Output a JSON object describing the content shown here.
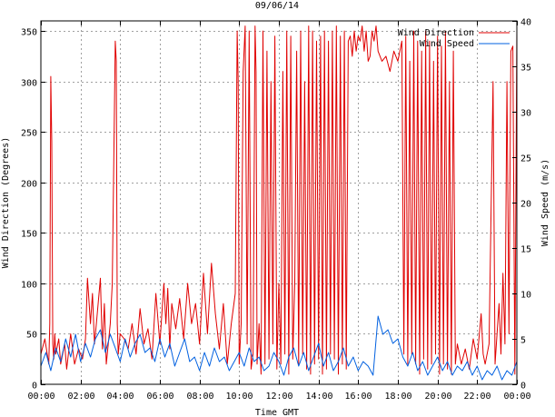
{
  "chart_data": {
    "type": "line",
    "title": "09/06/14",
    "xlabel": "Time GMT",
    "ylabel_left": "Wind Direction (Degrees)",
    "ylabel_right": "Wind Speed (m/s)",
    "xlim": [
      0,
      24
    ],
    "ylim_left": [
      0,
      360
    ],
    "ylim_right": [
      0,
      40
    ],
    "x_tick_values": [
      0,
      2,
      4,
      6,
      8,
      10,
      12,
      14,
      16,
      18,
      20,
      22,
      24
    ],
    "x_tick_labels": [
      "00:00",
      "02:00",
      "04:00",
      "06:00",
      "08:00",
      "10:00",
      "12:00",
      "14:00",
      "16:00",
      "18:00",
      "20:00",
      "22:00",
      "00:00"
    ],
    "y_left_tick_values": [
      0,
      50,
      100,
      150,
      200,
      250,
      300,
      350
    ],
    "y_left_tick_labels": [
      "0",
      "50",
      "100",
      "150",
      "200",
      "250",
      "300",
      "350"
    ],
    "y_right_tick_values": [
      0,
      5,
      10,
      15,
      20,
      25,
      30,
      35,
      40
    ],
    "y_right_tick_labels": [
      "0",
      "5",
      "10",
      "15",
      "20",
      "25",
      "30",
      "35",
      "40"
    ],
    "grid": true,
    "legend_position": "top-right",
    "series": [
      {
        "name": "Wind Direction",
        "axis": "left",
        "color": "#e00000",
        "x": [
          0.0,
          0.2,
          0.4,
          0.45,
          0.5,
          0.55,
          0.6,
          0.65,
          0.7,
          0.75,
          0.9,
          1.0,
          1.2,
          1.3,
          1.5,
          1.7,
          1.9,
          2.1,
          2.25,
          2.35,
          2.5,
          2.6,
          2.7,
          2.8,
          3.0,
          3.1,
          3.2,
          3.3,
          3.5,
          3.6,
          3.75,
          3.8,
          3.85,
          3.9,
          4.0,
          4.2,
          4.4,
          4.6,
          4.8,
          5.0,
          5.2,
          5.4,
          5.6,
          5.8,
          6.0,
          6.2,
          6.3,
          6.4,
          6.5,
          6.6,
          6.8,
          7.0,
          7.2,
          7.4,
          7.6,
          7.8,
          8.0,
          8.2,
          8.4,
          8.6,
          8.8,
          9.0,
          9.2,
          9.4,
          9.6,
          9.8,
          9.9,
          9.95,
          10.0,
          10.1,
          10.2,
          10.3,
          10.35,
          10.4,
          10.5,
          10.6,
          10.7,
          10.8,
          10.85,
          10.9,
          11.0,
          11.1,
          11.2,
          11.3,
          11.4,
          11.5,
          11.6,
          11.7,
          11.8,
          11.9,
          12.0,
          12.1,
          12.2,
          12.3,
          12.4,
          12.5,
          12.6,
          12.7,
          12.8,
          12.9,
          13.0,
          13.1,
          13.2,
          13.3,
          13.4,
          13.5,
          13.6,
          13.7,
          13.8,
          13.9,
          14.0,
          14.1,
          14.2,
          14.3,
          14.4,
          14.5,
          14.6,
          14.7,
          14.8,
          14.9,
          15.0,
          15.1,
          15.2,
          15.3,
          15.4,
          15.5,
          15.6,
          15.7,
          15.8,
          15.9,
          16.0,
          16.1,
          16.2,
          16.3,
          16.4,
          16.5,
          16.6,
          16.7,
          16.8,
          16.9,
          17.0,
          17.2,
          17.4,
          17.6,
          17.8,
          18.0,
          18.2,
          18.3,
          18.4,
          18.5,
          18.6,
          18.7,
          18.8,
          18.9,
          19.0,
          19.1,
          19.2,
          19.3,
          19.4,
          19.5,
          19.6,
          19.7,
          19.8,
          19.9,
          20.0,
          20.1,
          20.2,
          20.3,
          20.4,
          20.5,
          20.6,
          20.7,
          20.8,
          20.9,
          21.0,
          21.2,
          21.4,
          21.6,
          21.8,
          22.0,
          22.2,
          22.3,
          22.4,
          22.6,
          22.8,
          22.9,
          23.0,
          23.1,
          23.2,
          23.3,
          23.4,
          23.5,
          23.6,
          23.7,
          23.8,
          23.9,
          24.0
        ],
        "y": [
          30,
          45,
          20,
          60,
          305,
          240,
          40,
          25,
          50,
          30,
          45,
          20,
          40,
          15,
          50,
          20,
          35,
          25,
          45,
          105,
          60,
          90,
          40,
          60,
          105,
          35,
          80,
          20,
          60,
          100,
          340,
          320,
          60,
          30,
          50,
          45,
          35,
          60,
          30,
          75,
          40,
          55,
          25,
          90,
          40,
          100,
          60,
          95,
          35,
          80,
          55,
          85,
          45,
          100,
          60,
          80,
          40,
          110,
          50,
          120,
          70,
          35,
          80,
          20,
          60,
          90,
          350,
          300,
          20,
          60,
          310,
          355,
          200,
          40,
          350,
          15,
          30,
          355,
          310,
          20,
          60,
          10,
          350,
          20,
          330,
          25,
          300,
          40,
          345,
          15,
          100,
          20,
          310,
          30,
          350,
          10,
          345,
          25,
          100,
          330,
          20,
          350,
          30,
          300,
          15,
          355,
          10,
          350,
          20,
          340,
          25,
          345,
          10,
          350,
          15,
          340,
          30,
          350,
          25,
          355,
          10,
          345,
          20,
          350,
          15,
          340,
          345,
          325,
          350,
          330,
          345,
          340,
          355,
          330,
          350,
          320,
          325,
          350,
          340,
          355,
          330,
          320,
          325,
          310,
          330,
          320,
          340,
          30,
          345,
          20,
          320,
          30,
          350,
          20,
          340,
          10,
          330,
          25,
          350,
          15,
          340,
          20,
          320,
          30,
          345,
          10,
          335,
          20,
          350,
          15,
          300,
          10,
          330,
          20,
          40,
          20,
          35,
          15,
          45,
          25,
          70,
          30,
          20,
          40,
          300,
          20,
          50,
          80,
          30,
          110,
          40,
          300,
          50,
          330,
          335,
          10,
          350
        ]
      },
      {
        "name": "Wind Speed",
        "axis": "right",
        "color": "#0060e0",
        "x": [
          0.0,
          0.25,
          0.5,
          0.75,
          1.0,
          1.25,
          1.5,
          1.75,
          2.0,
          2.25,
          2.5,
          2.75,
          3.0,
          3.25,
          3.5,
          3.75,
          4.0,
          4.25,
          4.5,
          4.75,
          5.0,
          5.25,
          5.5,
          5.75,
          6.0,
          6.25,
          6.5,
          6.75,
          7.0,
          7.25,
          7.5,
          7.75,
          8.0,
          8.25,
          8.5,
          8.75,
          9.0,
          9.25,
          9.5,
          9.75,
          10.0,
          10.25,
          10.5,
          10.75,
          11.0,
          11.25,
          11.5,
          11.75,
          12.0,
          12.25,
          12.5,
          12.75,
          13.0,
          13.25,
          13.5,
          13.75,
          14.0,
          14.25,
          14.5,
          14.75,
          15.0,
          15.25,
          15.5,
          15.75,
          16.0,
          16.25,
          16.5,
          16.75,
          17.0,
          17.25,
          17.5,
          17.75,
          18.0,
          18.25,
          18.5,
          18.75,
          19.0,
          19.25,
          19.5,
          19.75,
          20.0,
          20.25,
          20.5,
          20.75,
          21.0,
          21.25,
          21.5,
          21.75,
          22.0,
          22.25,
          22.5,
          22.75,
          23.0,
          23.25,
          23.5,
          23.75,
          24.0
        ],
        "y": [
          2.0,
          3.5,
          1.5,
          4.0,
          2.5,
          5.0,
          3.0,
          5.5,
          2.5,
          4.5,
          3.0,
          5.0,
          6.0,
          3.5,
          5.5,
          4.0,
          2.5,
          5.0,
          3.0,
          4.5,
          5.5,
          3.5,
          4.0,
          2.5,
          5.0,
          3.0,
          4.5,
          2.0,
          3.5,
          5.0,
          2.5,
          3.0,
          1.5,
          3.5,
          2.0,
          4.0,
          2.5,
          3.0,
          1.5,
          2.5,
          3.5,
          2.0,
          4.0,
          2.5,
          3.0,
          1.5,
          2.0,
          3.5,
          2.5,
          1.0,
          3.0,
          4.0,
          2.0,
          3.5,
          1.5,
          3.0,
          4.5,
          2.0,
          3.5,
          1.5,
          2.5,
          4.0,
          2.0,
          3.0,
          1.5,
          2.5,
          2.0,
          1.0,
          7.5,
          5.5,
          6.0,
          4.5,
          5.0,
          3.0,
          2.0,
          3.5,
          1.5,
          2.5,
          1.0,
          2.0,
          3.0,
          1.5,
          2.5,
          1.0,
          2.0,
          1.5,
          2.5,
          1.0,
          2.0,
          0.5,
          1.5,
          1.0,
          2.0,
          0.5,
          1.5,
          1.0,
          2.5
        ]
      }
    ]
  }
}
